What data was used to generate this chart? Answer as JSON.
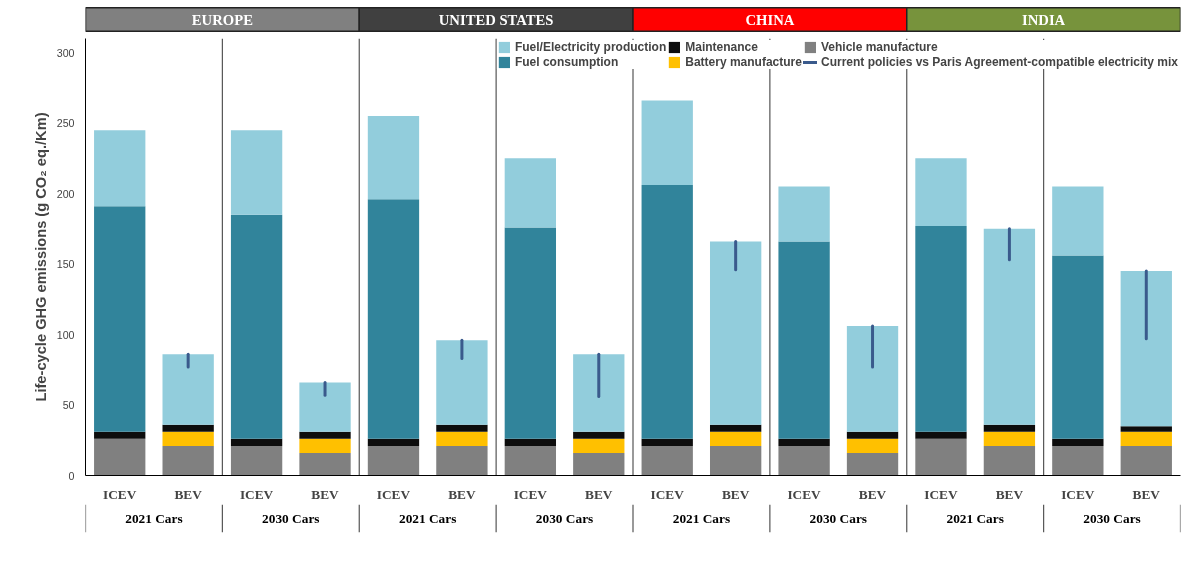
{
  "chart_data": {
    "type": "bar",
    "stacked": true,
    "ylabel": "Life-cycle GHG emissions (g CO₂ eq./Km)",
    "categories": [
      "ICEV",
      "BEV",
      "ICEV",
      "BEV",
      "ICEV",
      "BEV",
      "ICEV",
      "BEV",
      "ICEV",
      "BEV",
      "ICEV",
      "BEV",
      "ICEV",
      "BEV",
      "ICEV",
      "BEV"
    ],
    "series": [
      {
        "name": "Vehicle manufacture",
        "color": "#808080",
        "values": [
          26,
          21,
          21,
          16,
          21,
          21,
          21,
          16,
          21,
          21,
          21,
          16,
          26,
          21,
          21,
          21
        ]
      },
      {
        "name": "Battery manufacture",
        "color": "#ffc000",
        "values": [
          0,
          10,
          0,
          10,
          0,
          10,
          0,
          10,
          0,
          10,
          0,
          10,
          0,
          10,
          0,
          10
        ]
      },
      {
        "name": "Maintenance",
        "color": "#0d0d0d",
        "values": [
          5,
          5,
          5,
          5,
          5,
          5,
          5,
          5,
          5,
          5,
          5,
          5,
          5,
          5,
          5,
          4
        ]
      },
      {
        "name": "Fuel consumption",
        "color": "#31849b",
        "values": [
          160,
          0,
          159,
          0,
          170,
          0,
          150,
          0,
          180,
          0,
          140,
          0,
          146,
          0,
          130,
          0
        ]
      },
      {
        "name": "Fuel/Electricity production",
        "color": "#92cddc",
        "values": [
          54,
          50,
          60,
          35,
          59,
          60,
          49,
          55,
          60,
          130,
          39,
          75,
          48,
          139,
          49,
          110
        ],
        "errors": [
          null,
          [
            77,
            86
          ],
          null,
          [
            57,
            66
          ],
          null,
          [
            83,
            96
          ],
          null,
          [
            56,
            86
          ],
          null,
          [
            146,
            166
          ],
          null,
          [
            77,
            106
          ],
          null,
          [
            153,
            175
          ],
          null,
          [
            97,
            145
          ]
        ]
      }
    ],
    "ylim": [
      0,
      310
    ],
    "yticks": [
      0,
      50,
      100,
      150,
      200,
      250,
      300
    ],
    "grid": false,
    "legend": "top right",
    "annotations": [
      "EUROPE",
      "UNITED STATES",
      "CHINA",
      "INDIA",
      "2021 Cars",
      "2030 Cars",
      "2021 Cars",
      "2030 Cars",
      "2021 Cars",
      "2030 Cars",
      "2021 Cars",
      "2030 Cars",
      "Current policies vs Paris Agreement-compatible electricity mix"
    ]
  }
}
